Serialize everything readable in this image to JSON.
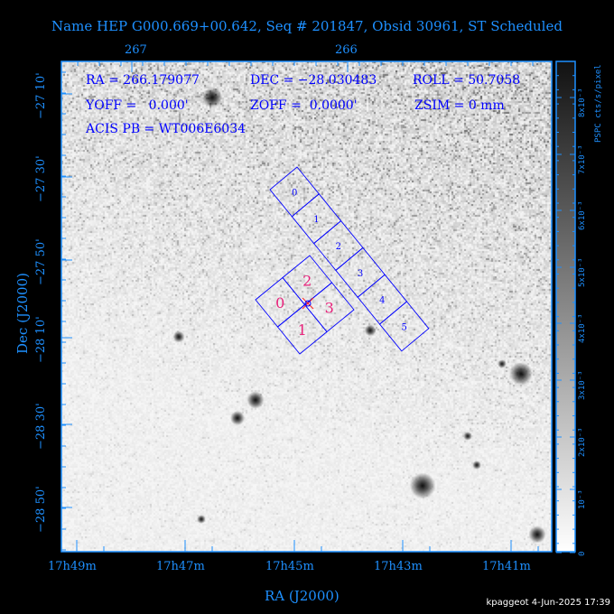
{
  "title": "Name HEP G000.669+00.642, Seq # 201847, Obsid 30961, ST Scheduled",
  "info": {
    "ra": "RA = 266.179077",
    "dec": "DEC = −28.030483",
    "roll": "ROLL = 50.7058",
    "yoff": "YOFF =   0.000'",
    "zoff": "ZOFF =  0.0000'",
    "zsim": "ZSIM = 0 mm",
    "acis_pb": "ACIS PB = WT006E6034"
  },
  "top_axis_ticks": [
    "267",
    "266"
  ],
  "bottom_axis_ticks": [
    "17h49m",
    "17h47m",
    "17h45m",
    "17h43m",
    "17h41m"
  ],
  "left_axis_ticks": [
    "−27 10'",
    "−27 30'",
    "−27 50'",
    "−28 10'",
    "−28 30'",
    "−28 50'"
  ],
  "xlabel": "RA (J2000)",
  "ylabel": "Dec (J2000)",
  "colorbar": {
    "label": "PSPC cts/s/pixel",
    "ticks": [
      "0",
      "10⁻³",
      "2x10⁻³",
      "3x10⁻³",
      "4x10⁻³",
      "5x10⁻³",
      "6x10⁻³",
      "7x10⁻³",
      "8x10⁻³"
    ]
  },
  "acis_s_chips": [
    "0",
    "1",
    "2",
    "3",
    "4",
    "5"
  ],
  "acis_i_chips": [
    "0",
    "1",
    "2",
    "3"
  ],
  "colors": {
    "axis": "#1e90ff",
    "overlay": "#0000ff",
    "acis_i_label": "#e8207a",
    "aimpoint": "#ff2020"
  },
  "footer": "kpaggeot  4-Jun-2025 17:39"
}
